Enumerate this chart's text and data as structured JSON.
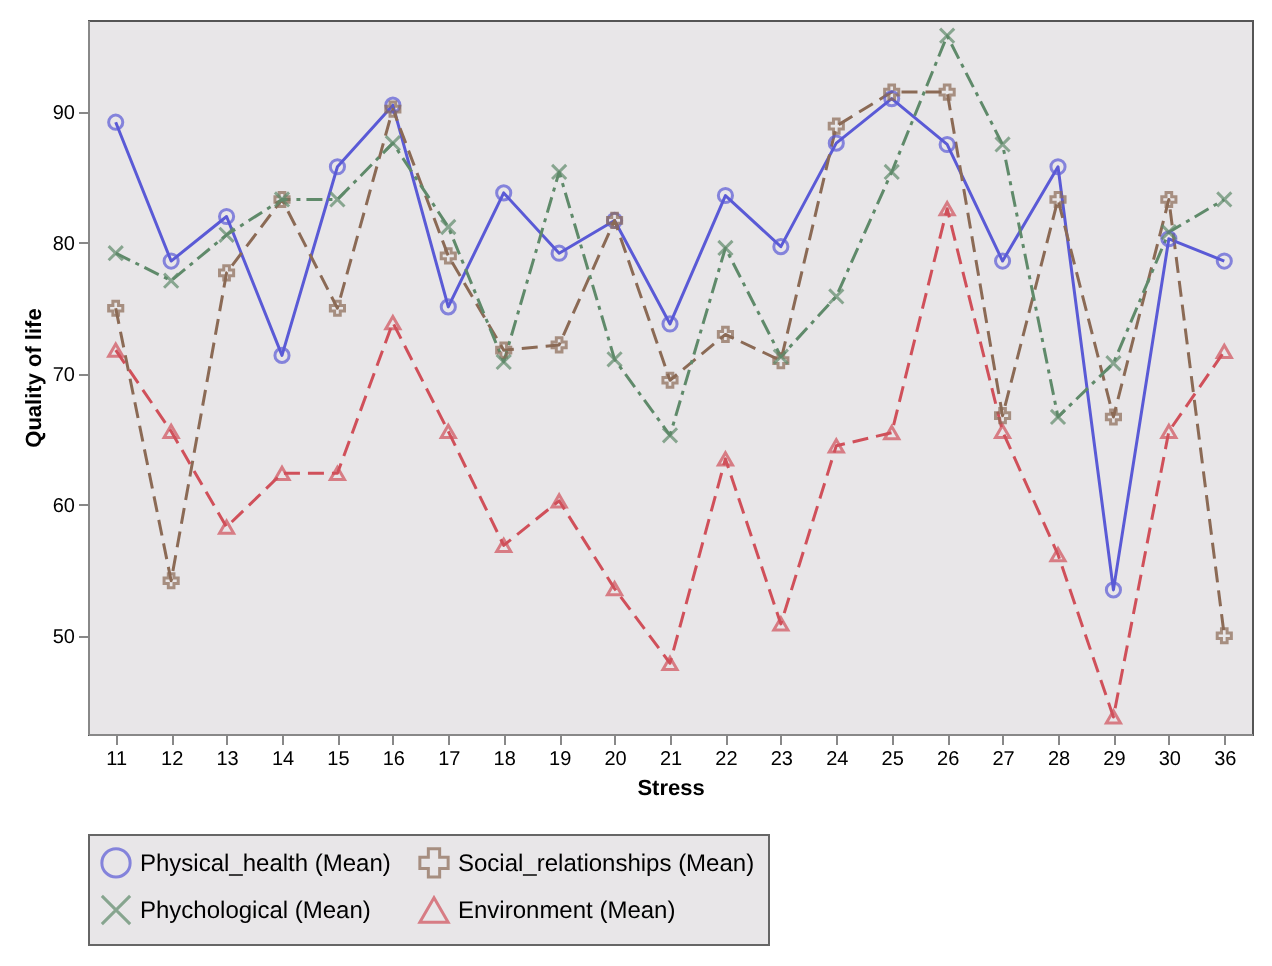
{
  "chart_data": {
    "type": "line",
    "xlabel": "Stress",
    "ylabel": "Quality of life",
    "categories": [
      "11",
      "12",
      "13",
      "14",
      "15",
      "16",
      "17",
      "18",
      "19",
      "20",
      "21",
      "22",
      "23",
      "24",
      "25",
      "26",
      "27",
      "28",
      "29",
      "30",
      "36"
    ],
    "series": [
      {
        "name": "Physical_health (Mean)",
        "color": "#5a5ad6",
        "marker": "circle",
        "line_style": "solid",
        "values": [
          89.2,
          78.6,
          82,
          71.4,
          85.8,
          90.5,
          75.1,
          83.8,
          79.2,
          81.7,
          73.8,
          83.6,
          79.7,
          87.6,
          91,
          87.5,
          78.6,
          85.8,
          53.5,
          80.3,
          78.6
        ]
      },
      {
        "name": "Social_relationships (Mean)",
        "color": "#8b6a55",
        "marker": "plus",
        "line_style": "dashed",
        "values": [
          75,
          54.2,
          77.7,
          83.3,
          75,
          90.2,
          79,
          71.8,
          72.2,
          81.7,
          69.5,
          73,
          71,
          88.9,
          91.5,
          91.5,
          66.8,
          83.3,
          66.7,
          83.3,
          50
        ]
      },
      {
        "name": "Phychological (Mean)",
        "color": "#5f8a6a",
        "marker": "cross",
        "line_style": "dashdot",
        "values": [
          79.2,
          77.1,
          80.6,
          83.3,
          83.3,
          87.6,
          81.2,
          70.9,
          85.4,
          71.1,
          65.3,
          79.6,
          71.3,
          75.9,
          85.4,
          95.8,
          87.5,
          66.7,
          70.8,
          80.8,
          83.3
        ]
      },
      {
        "name": "Environment (Mean)",
        "color": "#d0505a",
        "marker": "triangle",
        "line_style": "dashed",
        "values": [
          71.8,
          65.6,
          58.3,
          62.4,
          62.4,
          73.9,
          65.6,
          56.9,
          60.3,
          53.6,
          47.9,
          63.5,
          50.9,
          64.5,
          65.5,
          82.6,
          65.6,
          56.2,
          43.8,
          65.6,
          71.7
        ]
      }
    ],
    "ylim": [
      42.5,
      97
    ],
    "yticks": [
      50,
      60,
      70,
      80,
      90
    ],
    "grid": false,
    "legend": "bottom"
  }
}
